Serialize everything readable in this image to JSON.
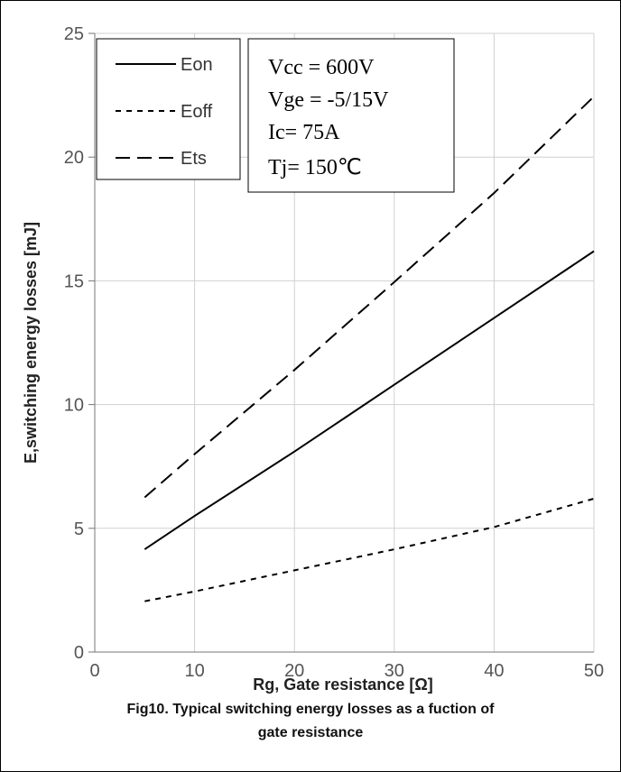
{
  "chart_data": {
    "type": "line",
    "title": "",
    "xlabel": "Rg, Gate resistance [Ω]",
    "ylabel": "E,switching energy losses [mJ]",
    "xlim": [
      0,
      50
    ],
    "ylim": [
      0,
      25
    ],
    "x_ticks": [
      "0",
      "10",
      "20",
      "30",
      "40",
      "50"
    ],
    "y_ticks": [
      "0",
      "5",
      "10",
      "15",
      "20",
      "25"
    ],
    "grid": true,
    "legend_position": "top-left",
    "series": [
      {
        "name": "Eon",
        "dash": "solid",
        "x": [
          5,
          10,
          20,
          30,
          40,
          50
        ],
        "y": [
          4.15,
          5.5,
          8.1,
          10.8,
          13.5,
          16.2
        ]
      },
      {
        "name": "Eoff",
        "dash": "short-dash",
        "x": [
          5,
          10,
          20,
          30,
          40,
          50
        ],
        "y": [
          2.05,
          2.45,
          3.3,
          4.15,
          5.05,
          6.2
        ]
      },
      {
        "name": "Ets",
        "dash": "long-dash",
        "x": [
          5,
          10,
          20,
          30,
          40,
          50
        ],
        "y": [
          6.25,
          8.0,
          11.4,
          14.95,
          18.55,
          22.45
        ]
      }
    ],
    "annotations": [
      "Vcc = 600V",
      "Vge = -5/15V",
      "Ic= 75A",
      "Tj= 150℃"
    ]
  },
  "caption": {
    "line1": "Fig10. Typical switching energy losses as a fuction of",
    "line2": "gate resistance"
  }
}
